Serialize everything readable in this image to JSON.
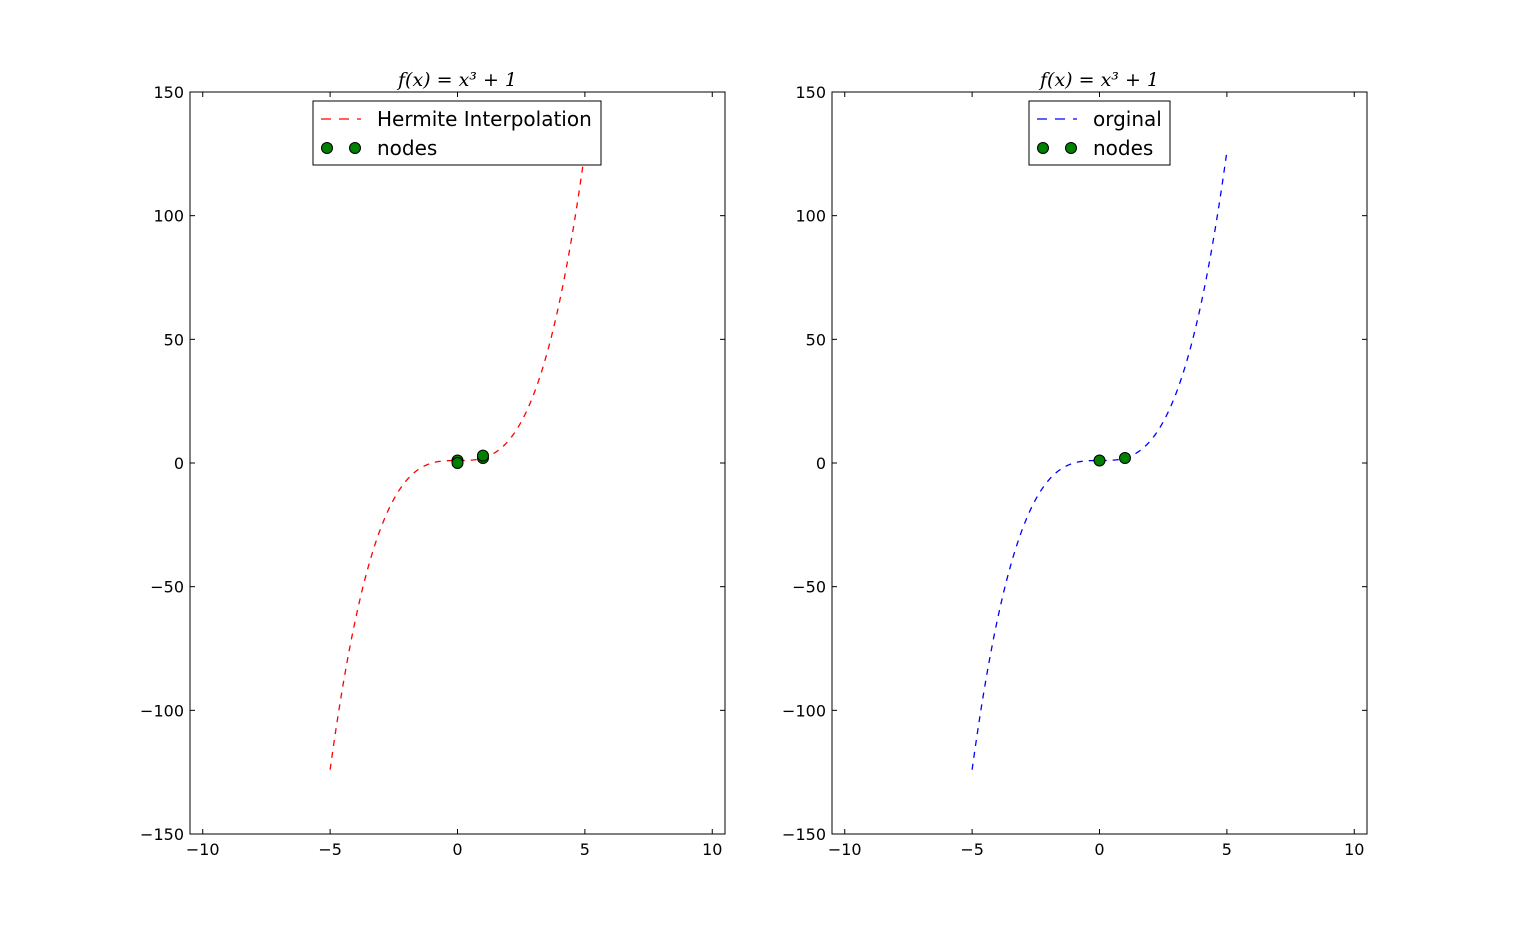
{
  "chart_data": [
    {
      "type": "line",
      "title": "f(x) = x³ + 1",
      "xlim": [
        -10.5,
        10.5
      ],
      "ylim": [
        -150,
        150
      ],
      "xticks": [
        -10,
        -5,
        0,
        5,
        10
      ],
      "yticks": [
        -150,
        -100,
        -50,
        0,
        50,
        100,
        150
      ],
      "xtick_labels": [
        "−10",
        "−5",
        "0",
        "5",
        "10"
      ],
      "ytick_labels": [
        "−150",
        "−100",
        "−50",
        "0",
        "50",
        "100",
        "150"
      ],
      "series": [
        {
          "name": "Hermite Interpolation",
          "style": "dashed",
          "color": "#ff0000",
          "function": "x^3 + 1",
          "x_range": [
            -5,
            5
          ],
          "x": [
            -5,
            -4,
            -3,
            -2,
            -1,
            0,
            1,
            2,
            3,
            4,
            5
          ],
          "y": [
            -124,
            -63,
            -26,
            -7,
            0,
            1,
            2,
            9,
            28,
            65,
            126
          ]
        },
        {
          "name": "nodes",
          "style": "markers",
          "color": "#008000",
          "x": [
            0,
            0,
            1,
            1
          ],
          "y": [
            1,
            0,
            2,
            3
          ]
        }
      ],
      "legend_position": "upper center",
      "grid": false
    },
    {
      "type": "line",
      "title": "f(x) = x³ + 1",
      "xlim": [
        -10.5,
        10.5
      ],
      "ylim": [
        -150,
        150
      ],
      "xticks": [
        -10,
        -5,
        0,
        5,
        10
      ],
      "yticks": [
        -150,
        -100,
        -50,
        0,
        50,
        100,
        150
      ],
      "xtick_labels": [
        "−10",
        "−5",
        "0",
        "5",
        "10"
      ],
      "ytick_labels": [
        "−150",
        "−100",
        "−50",
        "0",
        "50",
        "100",
        "150"
      ],
      "series": [
        {
          "name": "orginal",
          "style": "dashed",
          "color": "#0000ff",
          "function": "x^3 + 1",
          "x_range": [
            -5,
            5
          ],
          "x": [
            -5,
            -4,
            -3,
            -2,
            -1,
            0,
            1,
            2,
            3,
            4,
            5
          ],
          "y": [
            -124,
            -63,
            -26,
            -7,
            0,
            1,
            2,
            9,
            28,
            65,
            126
          ]
        },
        {
          "name": "nodes",
          "style": "markers",
          "color": "#008000",
          "x": [
            0,
            1
          ],
          "y": [
            1,
            2
          ]
        }
      ],
      "legend_position": "upper center",
      "grid": false
    }
  ]
}
